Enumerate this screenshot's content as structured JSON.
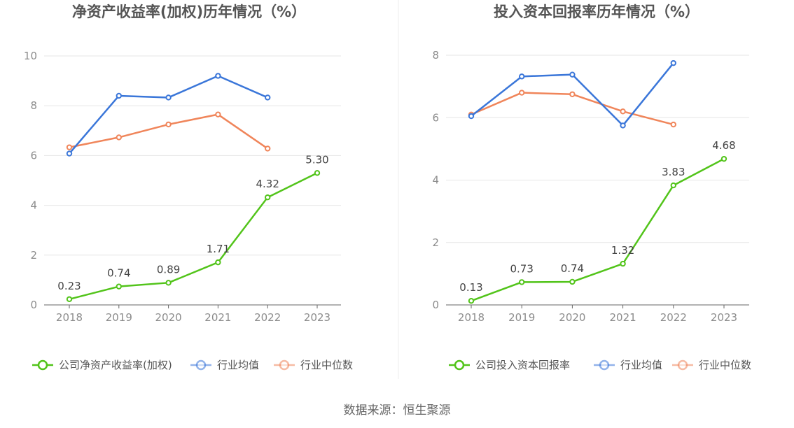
{
  "source": "数据来源：恒生聚源",
  "charts": [
    {
      "type": "line",
      "title": "净资产收益率(加权)历年情况（%）",
      "categories": [
        "2018",
        "2019",
        "2020",
        "2021",
        "2022",
        "2023"
      ],
      "ylim": [
        0,
        10
      ],
      "yticks": [
        0,
        2,
        4,
        6,
        8,
        10
      ],
      "grid": true,
      "legend_position": "bottom",
      "series": [
        {
          "name": "公司净资产收益率(加权)",
          "color": "#52c41a",
          "values": [
            0.23,
            0.74,
            0.89,
            1.71,
            4.32,
            5.3
          ],
          "labels": [
            "0.23",
            "0.74",
            "0.89",
            "1.71",
            "4.32",
            "5.30"
          ]
        },
        {
          "name": "行业均值",
          "color": "#3a76d9",
          "values": [
            6.08,
            8.4,
            8.33,
            9.2,
            8.33,
            null
          ]
        },
        {
          "name": "行业中位数",
          "color": "#f0855a",
          "values": [
            6.33,
            6.73,
            7.25,
            7.65,
            6.28,
            null
          ]
        }
      ]
    },
    {
      "type": "line",
      "title": "投入资本回报率历年情况（%）",
      "categories": [
        "2018",
        "2019",
        "2020",
        "2021",
        "2022",
        "2023"
      ],
      "ylim": [
        0,
        8
      ],
      "yticks": [
        0,
        2,
        4,
        6,
        8
      ],
      "grid": true,
      "legend_position": "bottom",
      "series": [
        {
          "name": "公司投入资本回报率",
          "color": "#52c41a",
          "values": [
            0.13,
            0.73,
            0.74,
            1.32,
            3.83,
            4.68
          ],
          "labels": [
            "0.13",
            "0.73",
            "0.74",
            "1.32",
            "3.83",
            "4.68"
          ]
        },
        {
          "name": "行业均值",
          "color": "#3a76d9",
          "values": [
            6.05,
            7.32,
            7.38,
            5.75,
            7.75,
            null
          ]
        },
        {
          "name": "行业中位数",
          "color": "#f0855a",
          "values": [
            6.1,
            6.8,
            6.75,
            6.2,
            5.78,
            null
          ]
        }
      ]
    }
  ]
}
